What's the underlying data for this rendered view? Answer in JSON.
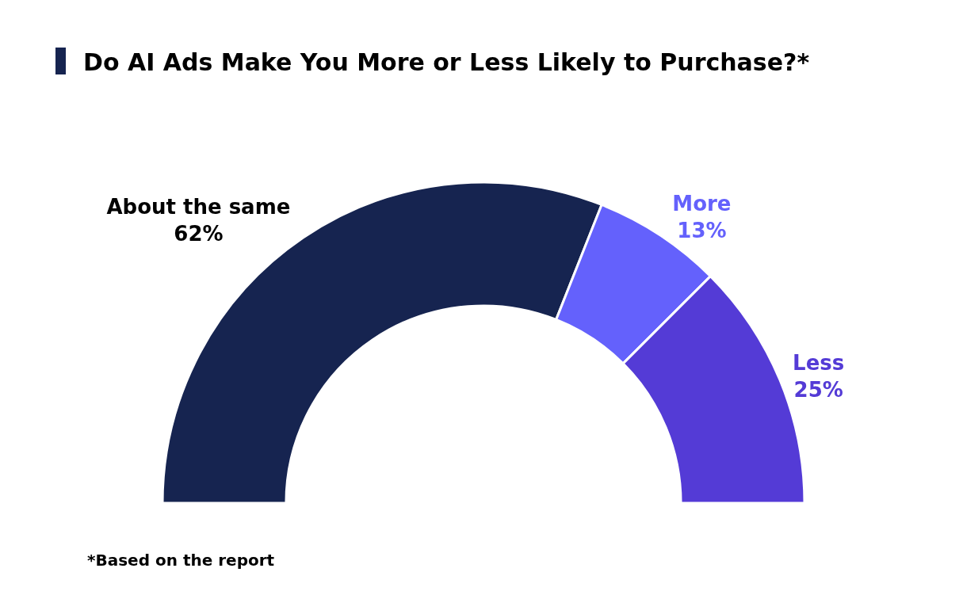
{
  "chart_data": {
    "type": "donut",
    "title": "Do AI Ads Make You More or Less Likely to Purchase?*",
    "categories": [
      "About the same",
      "More",
      "Less"
    ],
    "values": [
      62,
      13,
      25
    ],
    "value_labels": [
      "62%",
      "13%",
      "25%"
    ],
    "colors": [
      "#162450",
      "#6461fc",
      "#543bd6"
    ],
    "legend": false,
    "annotations": [
      "*Based on the report"
    ]
  }
}
